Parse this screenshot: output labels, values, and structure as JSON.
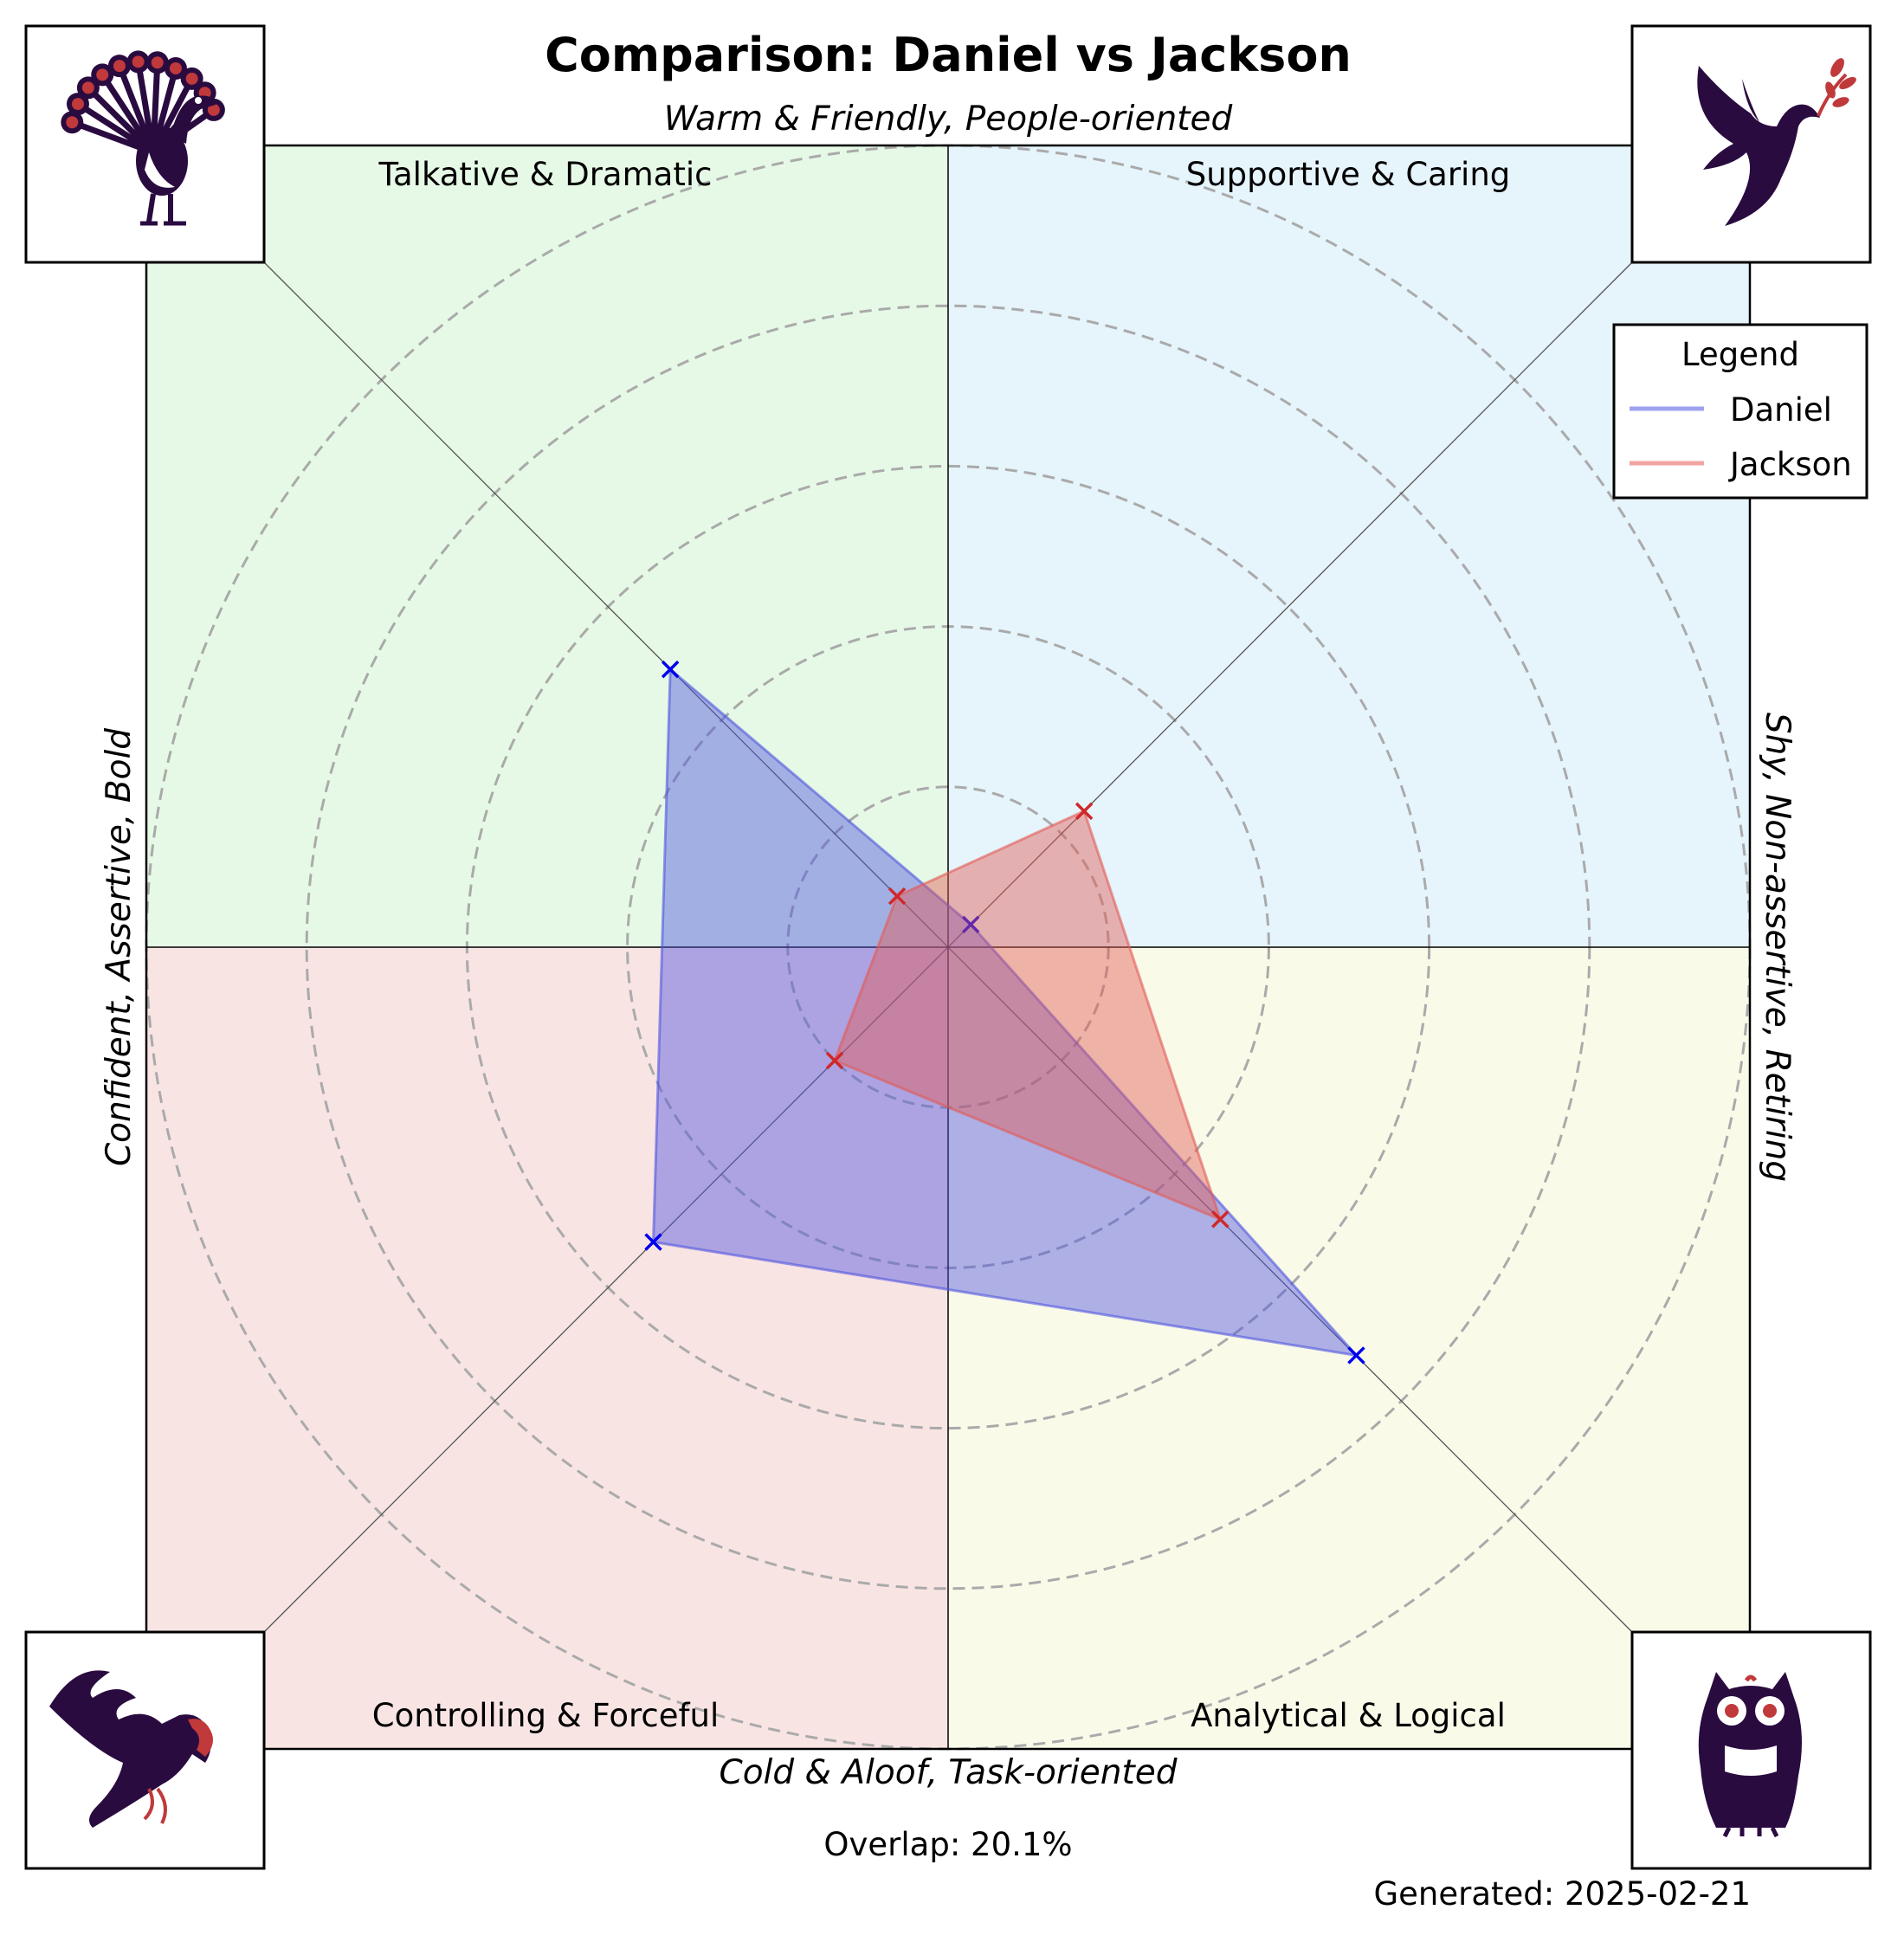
{
  "title": "Comparison: Daniel vs Jackson",
  "axis_labels": {
    "top": "Warm & Friendly, People-oriented",
    "bottom": "Cold & Aloof, Task-oriented",
    "left": "Confident, Assertive, Bold",
    "right": "Shy, Non-assertive, Retiring"
  },
  "quadrants": {
    "top_left": "Talkative & Dramatic",
    "top_right": "Supportive & Caring",
    "bottom_left": "Controlling & Forceful",
    "bottom_right": "Analytical & Logical"
  },
  "icons": {
    "top_left": "peacock-icon",
    "top_right": "dove-icon",
    "bottom_left": "eagle-icon",
    "bottom_right": "owl-icon"
  },
  "legend": {
    "title": "Legend",
    "items": [
      "Daniel",
      "Jackson"
    ]
  },
  "overlap_text": "Overlap: 20.1%",
  "generated_text": "Generated: 2025-02-21",
  "colors": {
    "quadrant_top_left": "#e6f9e6",
    "quadrant_top_right": "#e6f4fc",
    "quadrant_bottom_left": "#f9e4e4",
    "quadrant_bottom_right": "#fafae9",
    "daniel": "#4f55e0",
    "jackson": "#e35a55",
    "icon_dark": "#2a0b40",
    "icon_accent": "#c0393b"
  },
  "chart_data": {
    "type": "radar",
    "axes": [
      "Talkative & Dramatic",
      "Supportive & Caring",
      "Analytical & Logical",
      "Controlling & Forceful"
    ],
    "r_max": 5,
    "ring_values": [
      1,
      2,
      3,
      4,
      5
    ],
    "series": [
      {
        "name": "Daniel",
        "values": [
          2.45,
          0.2,
          3.6,
          2.6
        ],
        "color": "#4f55e0"
      },
      {
        "name": "Jackson",
        "values": [
          0.45,
          1.2,
          2.4,
          1.0
        ],
        "color": "#e35a55"
      }
    ]
  }
}
